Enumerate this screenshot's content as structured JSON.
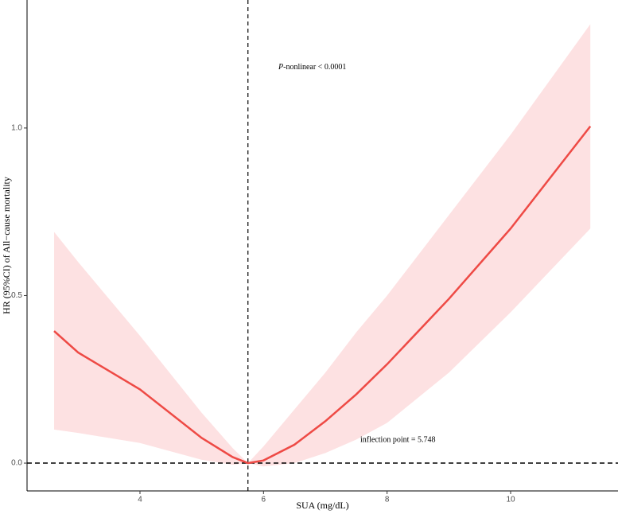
{
  "chart_data": {
    "type": "line",
    "x_label": "SUA (mg/dL)",
    "y_label": "HR (95%CI) of All−cause mortality",
    "annotation_p_italic": "P",
    "annotation_p_rest": "-nonlinear < 0.0001",
    "annotation_inflection": "inflection point = 5.748",
    "x": [
      2.61,
      3,
      4,
      5,
      5.5,
      5.748,
      6,
      6.5,
      7,
      7.5,
      8,
      9,
      10,
      11.29
    ],
    "values": [
      0.394,
      0.33,
      0.22,
      0.075,
      0.018,
      0,
      0.008,
      0.055,
      0.125,
      0.205,
      0.295,
      0.49,
      0.7,
      1.005
    ],
    "upper": [
      0.69,
      0.6,
      0.38,
      0.15,
      0.045,
      0,
      0.05,
      0.16,
      0.27,
      0.39,
      0.5,
      0.74,
      0.98,
      1.31
    ],
    "lower": [
      0.1,
      0.09,
      0.06,
      0.01,
      -0.005,
      0,
      -0.01,
      0,
      0.03,
      0.07,
      0.12,
      0.27,
      0.45,
      0.7
    ],
    "color": "#ee4a45",
    "band_color": "#fde1e2",
    "vline": 5.748,
    "hline": 0,
    "xlim": [
      2.172,
      11.738
    ],
    "ylim": [
      -0.083,
      1.382
    ],
    "xticks": [
      4,
      6,
      8,
      10
    ],
    "yticks": [
      {
        "value": 0,
        "label": "0.0"
      },
      {
        "value": 0.5,
        "label": "0.5"
      },
      {
        "value": 1,
        "label": "1.0"
      }
    ]
  }
}
